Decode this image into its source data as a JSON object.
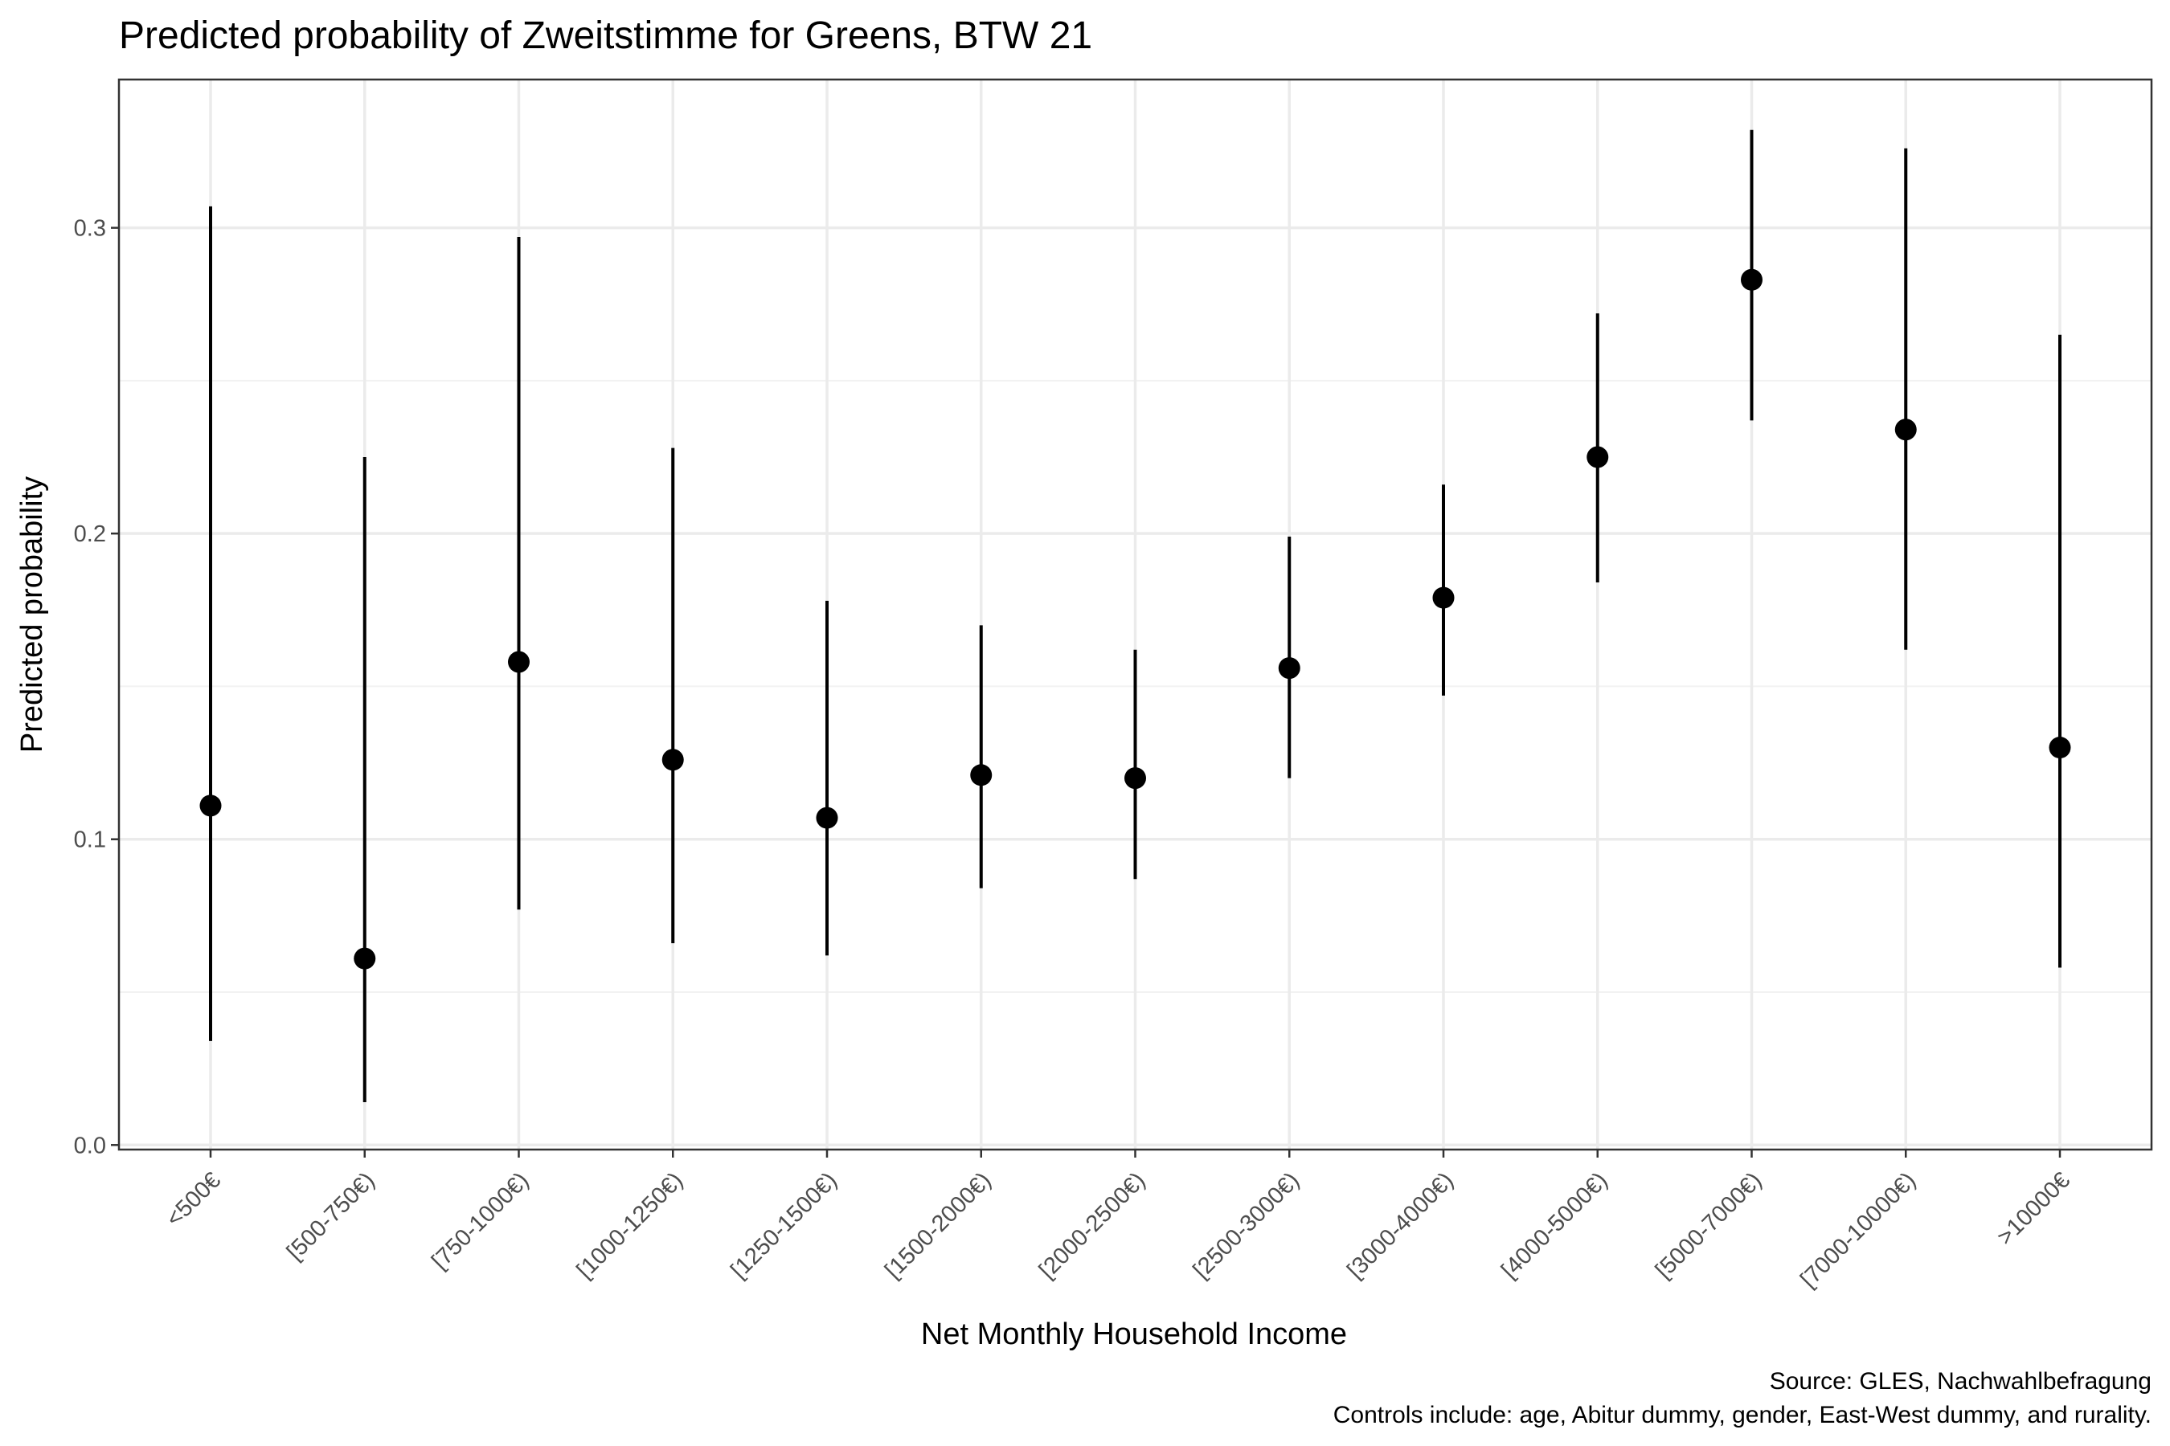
{
  "chart_data": {
    "type": "scatter",
    "title": "Predicted probability of Zweitstimme for Greens, BTW 21",
    "xlabel": "Net Monthly Household Income",
    "ylabel": "Predicted probability",
    "categories": [
      "<500€",
      "[500-750€)",
      "[750-1000€)",
      "[1000-1250€)",
      "[1250-1500€)",
      "[1500-2000€)",
      "[2000-2500€)",
      "[2500-3000€)",
      "[3000-4000€)",
      "[4000-5000€)",
      "[5000-7000€)",
      "[7000-10000€)",
      ">10000€"
    ],
    "values": [
      0.111,
      0.061,
      0.158,
      0.126,
      0.107,
      0.121,
      0.12,
      0.156,
      0.179,
      0.225,
      0.283,
      0.234,
      0.13
    ],
    "lower": [
      0.034,
      0.014,
      0.077,
      0.066,
      0.062,
      0.084,
      0.087,
      0.12,
      0.147,
      0.184,
      0.237,
      0.162,
      0.058
    ],
    "upper": [
      0.307,
      0.225,
      0.297,
      0.228,
      0.178,
      0.17,
      0.162,
      0.199,
      0.216,
      0.272,
      0.332,
      0.326,
      0.265
    ],
    "ylim": [
      -0.0015,
      0.3485
    ],
    "yticks": [
      0.0,
      0.1,
      0.2,
      0.3
    ],
    "ytick_labels": [
      "0.0",
      "0.1",
      "0.2",
      "0.3"
    ],
    "grid": true,
    "caption": [
      "Source: GLES, Nachwahlbefragung",
      "Controls include: age, Abitur dummy, gender, East-West dummy, and rurality."
    ]
  }
}
